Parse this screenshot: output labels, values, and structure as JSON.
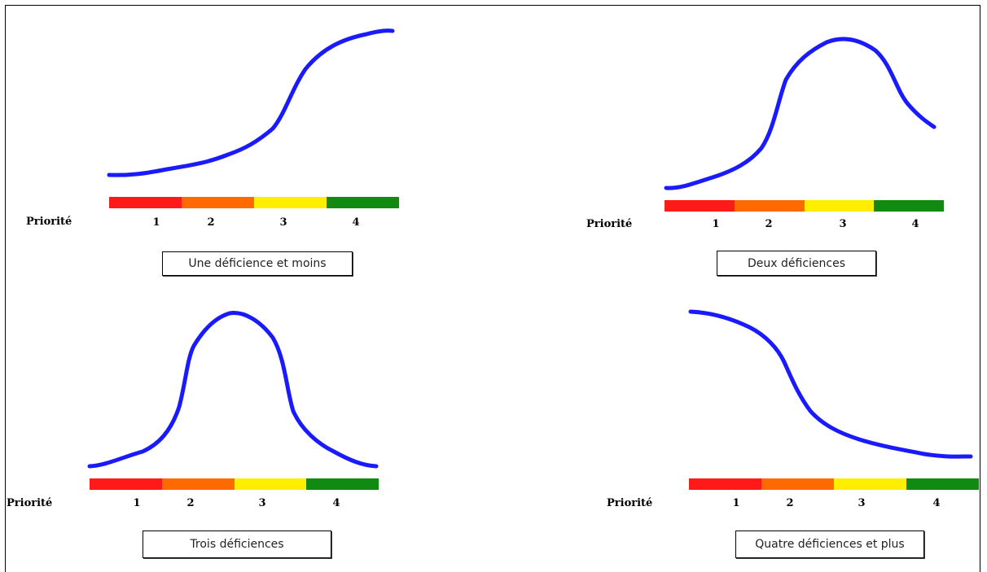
{
  "priority_label": "Priorité",
  "priority_colors": [
    "#ff1a1a",
    "#ff6a00",
    "#ffee00",
    "#118a11"
  ],
  "curve_color": "#1a1aff",
  "panels": [
    {
      "caption": "Une déficience et moins",
      "numbers": [
        "1",
        "2",
        "3",
        "4"
      ],
      "trend": "increasing sigmoid"
    },
    {
      "caption": "Deux déficiences",
      "numbers": [
        "1",
        "2",
        "3",
        "4"
      ],
      "trend": "peak at priority 3"
    },
    {
      "caption": "Trois déficiences",
      "numbers": [
        "1",
        "2",
        "3",
        "4"
      ],
      "trend": "peak between priority 2 and 3"
    },
    {
      "caption": "Quatre déficiences et plus",
      "numbers": [
        "1",
        "2",
        "3",
        "4"
      ],
      "trend": "decreasing"
    }
  ]
}
